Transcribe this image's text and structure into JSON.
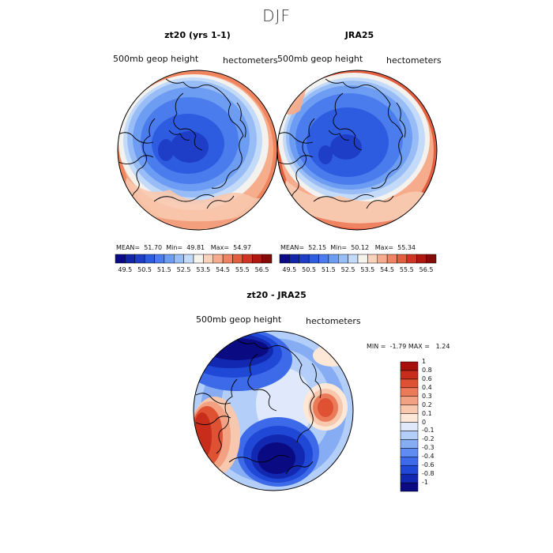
{
  "season_title": "DJF",
  "top_left": {
    "title": "zt20 (yrs 1-1)",
    "field_label": "500mb  geop  height",
    "units_label": "hectometers",
    "mean_label": "MEAN=",
    "mean": "51.70",
    "min_label": "Min=",
    "min": "49.81",
    "max_label": "Max=",
    "max": "54.97"
  },
  "top_right": {
    "title": "JRA25",
    "field_label": "500mb  geop  height",
    "units_label": "hectometers",
    "mean_label": "MEAN=",
    "mean": "52.15",
    "min_label": "Min=",
    "min": "50.12",
    "max_label": "Max=",
    "max": "55.34"
  },
  "abs_colorbar": {
    "colors": [
      "#0a0a82",
      "#1126a8",
      "#1e3ec8",
      "#2e5ce0",
      "#4a7ced",
      "#6d9cf3",
      "#98bcf6",
      "#c4daf9",
      "#f4f3ee",
      "#f9d2bc",
      "#f6ac8c",
      "#ef8463",
      "#e35d3f",
      "#cd3623",
      "#b01710",
      "#840c08"
    ],
    "tick_labels": [
      "49.5",
      "50.5",
      "51.5",
      "52.5",
      "53.5",
      "54.5",
      "55.5",
      "56.5"
    ]
  },
  "diff": {
    "title": "zt20 - JRA25",
    "field_label": "500mb  geop  height",
    "units_label": "hectometers",
    "min_label": "MIN =",
    "min": "-1.79",
    "max_label": "MAX =",
    "max": "1.24",
    "colorbar": {
      "colors": [
        "#0a0a82",
        "#1228b0",
        "#1f48d6",
        "#3d6ae8",
        "#5f8cf0",
        "#86adf4",
        "#b3cef8",
        "#dfe9fb",
        "#fde8d8",
        "#f8c8ae",
        "#f2a283",
        "#ea7a58",
        "#de5233",
        "#c82c1a",
        "#a60f0c"
      ],
      "tick_labels": [
        "-1",
        "-0.8",
        "-0.6",
        "-0.4",
        "-0.3",
        "-0.2",
        "-0.1",
        "0",
        "0.1",
        "0.2",
        "0.3",
        "0.4",
        "0.6",
        "0.8",
        "1"
      ]
    }
  }
}
